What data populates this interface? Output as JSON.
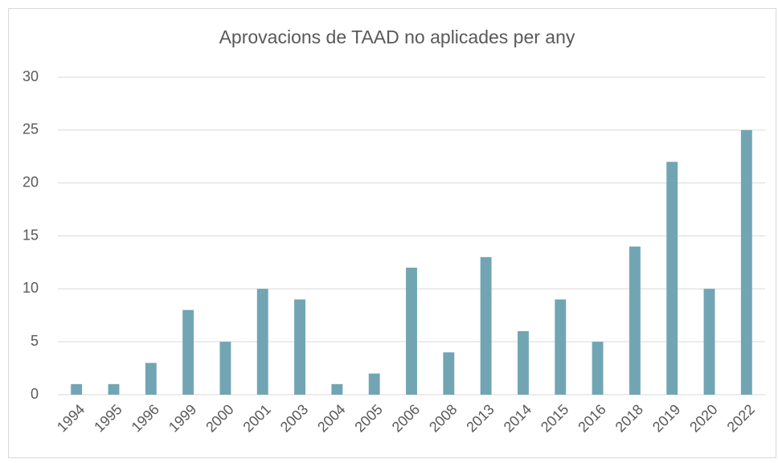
{
  "chart_data": {
    "type": "bar",
    "title": "Aprovacions de TAAD no aplicades per any",
    "categories": [
      "1994",
      "1995",
      "1996",
      "1999",
      "2000",
      "2001",
      "2003",
      "2004",
      "2005",
      "2006",
      "2008",
      "2013",
      "2014",
      "2015",
      "2016",
      "2018",
      "2019",
      "2020",
      "2022"
    ],
    "values": [
      1,
      1,
      3,
      8,
      5,
      10,
      9,
      1,
      2,
      12,
      4,
      13,
      6,
      9,
      5,
      14,
      22,
      10,
      25
    ],
    "color": "#71a5b4",
    "ylim": [
      0,
      30
    ],
    "yticks": [
      0,
      5,
      10,
      15,
      20,
      25,
      30
    ],
    "grid": true
  }
}
